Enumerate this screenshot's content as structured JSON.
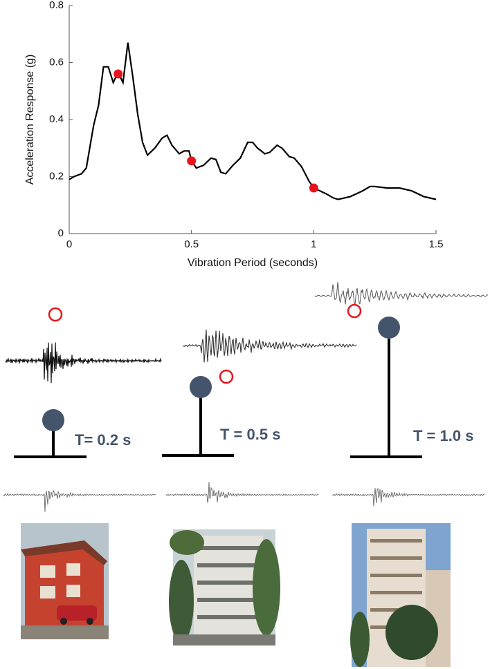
{
  "chart_data": {
    "type": "line",
    "x_label": "Vibration Period (seconds)",
    "y_label": "Acceleration Response (g)",
    "xlim": [
      0,
      1.5
    ],
    "xticks": [
      0,
      0.5,
      1,
      1.5
    ],
    "ylim": [
      0,
      0.8
    ],
    "yticks": [
      0,
      0.2,
      0.4,
      0.6,
      0.8
    ],
    "series": [
      {
        "type": "line",
        "color": "#000000",
        "x": [
          0,
          0.02,
          0.05,
          0.07,
          0.1,
          0.12,
          0.14,
          0.16,
          0.18,
          0.2,
          0.22,
          0.24,
          0.26,
          0.28,
          0.3,
          0.32,
          0.35,
          0.38,
          0.4,
          0.42,
          0.45,
          0.47,
          0.49,
          0.5,
          0.52,
          0.55,
          0.58,
          0.6,
          0.62,
          0.64,
          0.67,
          0.7,
          0.73,
          0.75,
          0.77,
          0.8,
          0.82,
          0.85,
          0.87,
          0.9,
          0.92,
          0.95,
          0.98,
          1.0,
          1.05,
          1.08,
          1.1,
          1.15,
          1.2,
          1.23,
          1.25,
          1.3,
          1.35,
          1.4,
          1.45,
          1.5
        ],
        "values": [
          0.19,
          0.2,
          0.21,
          0.23,
          0.38,
          0.45,
          0.585,
          0.585,
          0.53,
          0.565,
          0.53,
          0.67,
          0.55,
          0.42,
          0.32,
          0.275,
          0.3,
          0.335,
          0.345,
          0.31,
          0.28,
          0.29,
          0.29,
          0.255,
          0.23,
          0.24,
          0.265,
          0.26,
          0.215,
          0.21,
          0.24,
          0.265,
          0.32,
          0.32,
          0.3,
          0.28,
          0.285,
          0.31,
          0.3,
          0.27,
          0.265,
          0.235,
          0.185,
          0.16,
          0.14,
          0.125,
          0.12,
          0.13,
          0.15,
          0.165,
          0.165,
          0.16,
          0.16,
          0.15,
          0.13,
          0.12
        ]
      },
      {
        "type": "scatter",
        "color": "#e8141b",
        "x": [
          0.2,
          0.5,
          1.0
        ],
        "values": [
          0.56,
          0.255,
          0.16
        ]
      }
    ]
  },
  "oscillators": [
    {
      "label": "T= 0.2 s"
    },
    {
      "label": "T = 0.5 s"
    },
    {
      "label": "T = 1.0 s"
    }
  ]
}
